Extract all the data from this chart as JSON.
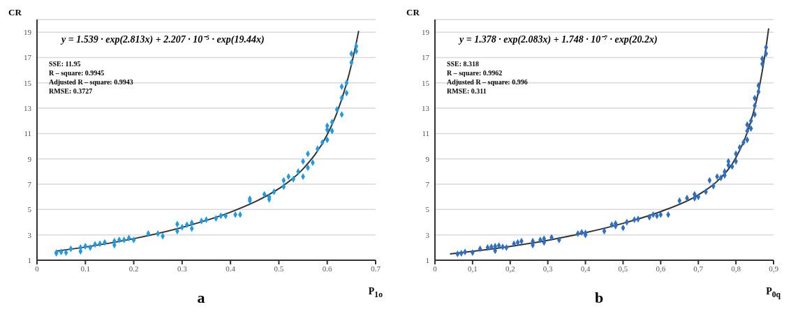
{
  "chart_data": [
    {
      "type": "scatter",
      "title": "a",
      "xlabel": "P$_{1o}$",
      "ylabel": "CR",
      "xlim": [
        0,
        0.7
      ],
      "xticks": [
        0,
        0.1,
        0.2,
        0.3,
        0.4,
        0.5,
        0.6,
        0.7
      ],
      "ylim": [
        1,
        20
      ],
      "yticks": [
        1,
        3,
        5,
        7,
        9,
        11,
        13,
        15,
        17,
        19
      ],
      "grid": "y",
      "annotations": [
        "y = 1.539 · exp(2.813x) + 2.207 · 10⁻⁵ · exp(19.44x)",
        "SSE: 11.95",
        "R – square: 0.9945",
        "Adjusted R – square: 0.9943",
        "RMSE: 0.3727"
      ],
      "series": [
        {
          "marker": "diamond",
          "color": "#1f9be3",
          "x": [
            0.04,
            0.04,
            0.05,
            0.06,
            0.07,
            0.09,
            0.09,
            0.1,
            0.11,
            0.12,
            0.13,
            0.14,
            0.16,
            0.16,
            0.17,
            0.18,
            0.19,
            0.2,
            0.23,
            0.25,
            0.26,
            0.29,
            0.29,
            0.3,
            0.31,
            0.32,
            0.32,
            0.34,
            0.35,
            0.37,
            0.38,
            0.39,
            0.41,
            0.42,
            0.44,
            0.44,
            0.47,
            0.48,
            0.48,
            0.49,
            0.51,
            0.51,
            0.52,
            0.53,
            0.54,
            0.55,
            0.55,
            0.56,
            0.56,
            0.57,
            0.58,
            0.59,
            0.6,
            0.6,
            0.6,
            0.61,
            0.61,
            0.62,
            0.63,
            0.63,
            0.64,
            0.63,
            0.64,
            0.65,
            0.65,
            0.66,
            0.66
          ],
          "values": [
            1.6,
            1.55,
            1.65,
            1.6,
            1.9,
            1.7,
            2.0,
            2.1,
            2.0,
            2.25,
            2.3,
            2.4,
            2.2,
            2.5,
            2.6,
            2.6,
            2.75,
            2.6,
            3.1,
            3.1,
            2.9,
            3.3,
            3.85,
            3.6,
            3.8,
            3.5,
            3.95,
            4.1,
            4.2,
            4.3,
            4.5,
            4.5,
            4.6,
            4.6,
            5.7,
            5.85,
            6.2,
            5.8,
            6.0,
            6.4,
            6.8,
            7.3,
            7.6,
            7.4,
            8.0,
            7.6,
            8.8,
            8.3,
            9.4,
            8.7,
            9.8,
            10.3,
            10.5,
            11.3,
            11.6,
            11.2,
            11.9,
            12.9,
            12.5,
            13.8,
            14.2,
            14.7,
            15.0,
            16.6,
            17.3,
            17.5,
            17.9
          ]
        },
        {
          "type": "line",
          "marker": "none",
          "color": "#333333",
          "x": [
            0.04,
            0.1,
            0.2,
            0.3,
            0.4,
            0.45,
            0.5,
            0.55,
            0.6,
            0.62,
            0.64,
            0.66,
            0.665
          ],
          "values": [
            1.72,
            2.04,
            2.7,
            3.59,
            4.79,
            5.6,
            6.65,
            8.21,
            10.92,
            12.63,
            14.96,
            18.15,
            19.1
          ]
        }
      ]
    },
    {
      "type": "scatter",
      "title": "b",
      "xlabel": "P$_{0q}$",
      "ylabel": "CR",
      "xlim": [
        0,
        0.9
      ],
      "xticks": [
        0,
        {
          "value": 0.1,
          "label": "0,1"
        },
        {
          "value": 0.2,
          "label": "0,2"
        },
        {
          "value": 0.3,
          "label": "0,3"
        },
        {
          "value": 0.4,
          "label": "0,4"
        },
        {
          "value": 0.5,
          "label": "0,5"
        },
        {
          "value": 0.6,
          "label": "0,6"
        },
        {
          "value": 0.7,
          "label": "0,7"
        },
        {
          "value": 0.8,
          "label": "0,8"
        },
        {
          "value": 0.9,
          "label": "0,9"
        }
      ],
      "ylim": [
        1,
        20
      ],
      "yticks": [
        1,
        3,
        5,
        7,
        9,
        11,
        13,
        15,
        17,
        19
      ],
      "grid": "y",
      "annotations": [
        "y = 1.378 · exp(2.083x) + 1.748 · 10⁻⁷ · exp(20.2x)",
        "SSE: 8.318",
        "R – square: 0.9962",
        "Adjusted R – square: 0.996",
        "RMSE: 0.311"
      ],
      "series": [
        {
          "marker": "diamond",
          "color": "#2f6fc2",
          "x": [
            0.06,
            0.07,
            0.08,
            0.1,
            0.12,
            0.14,
            0.15,
            0.16,
            0.16,
            0.17,
            0.18,
            0.19,
            0.21,
            0.22,
            0.23,
            0.26,
            0.26,
            0.28,
            0.29,
            0.29,
            0.31,
            0.33,
            0.38,
            0.39,
            0.4,
            0.4,
            0.45,
            0.47,
            0.48,
            0.48,
            0.5,
            0.51,
            0.53,
            0.54,
            0.57,
            0.58,
            0.59,
            0.6,
            0.62,
            0.65,
            0.67,
            0.69,
            0.69,
            0.7,
            0.72,
            0.73,
            0.74,
            0.75,
            0.76,
            0.77,
            0.77,
            0.78,
            0.78,
            0.79,
            0.8,
            0.8,
            0.81,
            0.82,
            0.83,
            0.83,
            0.84,
            0.83,
            0.84,
            0.85,
            0.85,
            0.85,
            0.86,
            0.86,
            0.87,
            0.87,
            0.88,
            0.88
          ],
          "values": [
            1.5,
            1.55,
            1.65,
            1.6,
            1.9,
            2.0,
            2.05,
            1.75,
            2.1,
            2.15,
            2.05,
            2.0,
            2.3,
            2.4,
            2.5,
            2.5,
            2.2,
            2.6,
            2.4,
            2.7,
            2.8,
            2.6,
            3.1,
            3.2,
            3.0,
            3.15,
            3.3,
            3.8,
            3.9,
            3.7,
            3.55,
            4.0,
            4.2,
            4.25,
            4.4,
            4.6,
            4.5,
            4.6,
            4.6,
            5.7,
            5.9,
            6.2,
            5.9,
            6.0,
            6.4,
            7.3,
            6.85,
            7.6,
            7.5,
            7.7,
            8.0,
            8.5,
            8.8,
            8.4,
            8.8,
            9.4,
            9.9,
            10.3,
            10.5,
            11.2,
            11.4,
            11.7,
            12.0,
            12.5,
            13.2,
            13.8,
            14.3,
            14.8,
            16.5,
            16.9,
            17.3,
            17.8
          ]
        },
        {
          "type": "line",
          "marker": "none",
          "color": "#333333",
          "x": [
            0.04,
            0.1,
            0.2,
            0.3,
            0.4,
            0.5,
            0.6,
            0.7,
            0.75,
            0.8,
            0.83,
            0.86,
            0.88,
            0.887
          ],
          "values": [
            1.5,
            1.7,
            2.09,
            2.57,
            3.17,
            3.91,
            4.84,
            6.16,
            7.23,
            9.1,
            11.09,
            14.35,
            17.8,
            19.3
          ]
        }
      ]
    }
  ]
}
